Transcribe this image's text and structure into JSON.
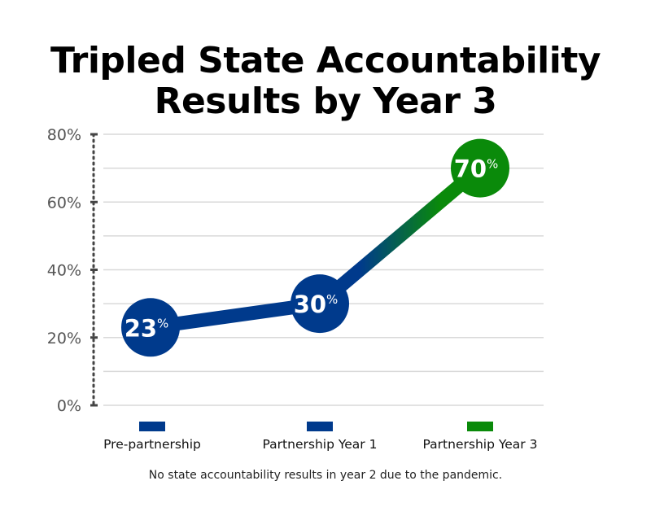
{
  "title_lines": [
    "Tripled State Accountability",
    "Results by Year 3"
  ],
  "footnote": "No state accountability results in year 2 due to the pandemic.",
  "colors": {
    "blue": "#003a8c",
    "green": "#0a8a0a",
    "grid": "#d9d9d9",
    "axis": "#444444",
    "tick_text": "#555555"
  },
  "chart_data": {
    "type": "line",
    "title": "Tripled State Accountability Results by Year 3",
    "categories": [
      "Pre-partnership",
      "Partnership Year 1",
      "Partnership Year 3"
    ],
    "values": [
      23,
      30,
      70
    ],
    "data_labels": [
      "23",
      "30",
      "70"
    ],
    "data_label_suffix": "%",
    "point_colors": [
      "#003a8c",
      "#003a8c",
      "#0a8a0a"
    ],
    "ylim": [
      0,
      80
    ],
    "y_ticks": [
      0,
      20,
      40,
      60,
      80
    ],
    "y_tick_labels": [
      "0%",
      "20%",
      "40%",
      "60%",
      "80%"
    ],
    "minor_grid_step": 10,
    "grid": true,
    "legend_position": "bottom",
    "xlabel": "",
    "ylabel": ""
  }
}
